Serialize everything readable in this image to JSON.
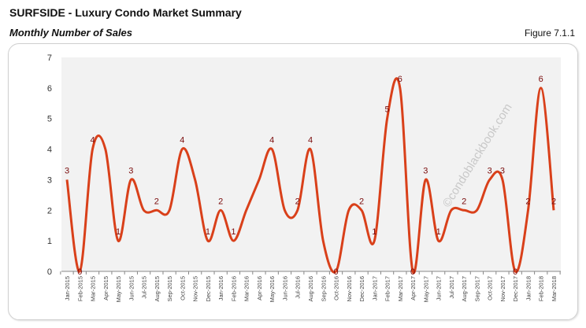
{
  "header": {
    "title": "SURFSIDE - Luxury Condo Market Summary",
    "subtitle": "Monthly Number of Sales",
    "figure": "Figure 7.1.1"
  },
  "watermark": "©condoblackbook.com",
  "chart_data": {
    "type": "line",
    "smooth": true,
    "color": "#d9401a",
    "label_color": "#7a0c0c",
    "plot_bg": "#f2f2f2",
    "ylim": [
      0,
      7
    ],
    "yticks": [
      0,
      1,
      2,
      3,
      4,
      5,
      6,
      7
    ],
    "grid": false,
    "categories": [
      "Jan-2015",
      "Feb-2015",
      "Mar-2015",
      "Apr-2015",
      "May-2015",
      "Jun-2015",
      "Jul-2015",
      "Aug-2015",
      "Sep-2015",
      "Oct-2015",
      "Nov-2015",
      "Dec-2015",
      "Jan-2016",
      "Feb-2016",
      "Mar-2016",
      "Apr-2016",
      "May-2016",
      "Jun-2016",
      "Jul-2016",
      "Aug-2016",
      "Sep-2016",
      "Oct-2016",
      "Nov-2016",
      "Dec-2016",
      "Jan-2017",
      "Feb-2017",
      "Mar-2017",
      "Apr-2017",
      "May-2017",
      "Jun-2017",
      "Jul-2017",
      "Aug-2017",
      "Sep-2017",
      "Oct-2017",
      "Nov-2017",
      "Dec-2017",
      "Jan-2018",
      "Feb-2018",
      "Mar-2018"
    ],
    "values": [
      3,
      0,
      4,
      4,
      1,
      3,
      2,
      2,
      2,
      4,
      3,
      1,
      2,
      1,
      2,
      3,
      4,
      2,
      2,
      4,
      1,
      0,
      2,
      2,
      1,
      5,
      6,
      0,
      3,
      1,
      2,
      2,
      2,
      3,
      3,
      0,
      2,
      6,
      2
    ],
    "data_labels": [
      "3",
      "0",
      "4",
      null,
      "1",
      "3",
      null,
      "2",
      null,
      "4",
      null,
      "1",
      "2",
      "1",
      null,
      null,
      "4",
      null,
      "2",
      "4",
      null,
      "0",
      null,
      "2",
      "1",
      "5",
      "6",
      "0",
      "3",
      "1",
      null,
      "2",
      null,
      "3",
      "3",
      "0",
      "2",
      "6",
      "2"
    ]
  }
}
